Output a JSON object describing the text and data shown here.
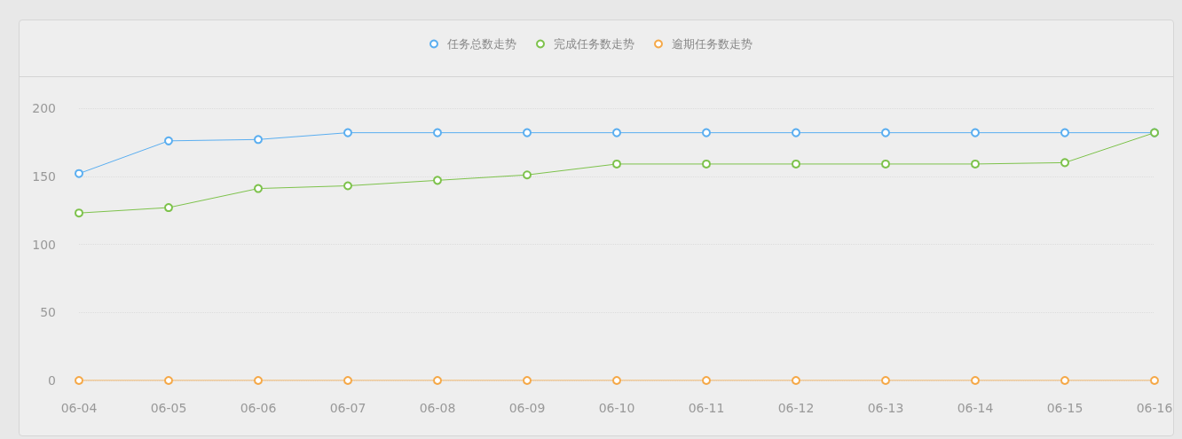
{
  "chart_data": {
    "type": "line",
    "categories": [
      "06-04",
      "06-05",
      "06-06",
      "06-07",
      "06-08",
      "06-09",
      "06-10",
      "06-11",
      "06-12",
      "06-13",
      "06-14",
      "06-15",
      "06-16"
    ],
    "series": [
      {
        "name": "任务总数走势",
        "color": "#5aaef0",
        "values": [
          152,
          176,
          177,
          182,
          182,
          182,
          182,
          182,
          182,
          182,
          182,
          182,
          182
        ]
      },
      {
        "name": "完成任务数走势",
        "color": "#7dc24b",
        "values": [
          123,
          127,
          141,
          143,
          147,
          151,
          159,
          159,
          159,
          159,
          159,
          160,
          182
        ]
      },
      {
        "name": "逾期任务数走势",
        "color": "#f5a847",
        "values": [
          0,
          0,
          0,
          0,
          0,
          0,
          0,
          0,
          0,
          0,
          0,
          0,
          0
        ]
      }
    ],
    "ylim": [
      0,
      200
    ],
    "yticks": [
      0,
      50,
      100,
      150,
      200
    ],
    "grid": "y",
    "legend": "top",
    "marker": "circle",
    "line_style": "solid"
  }
}
